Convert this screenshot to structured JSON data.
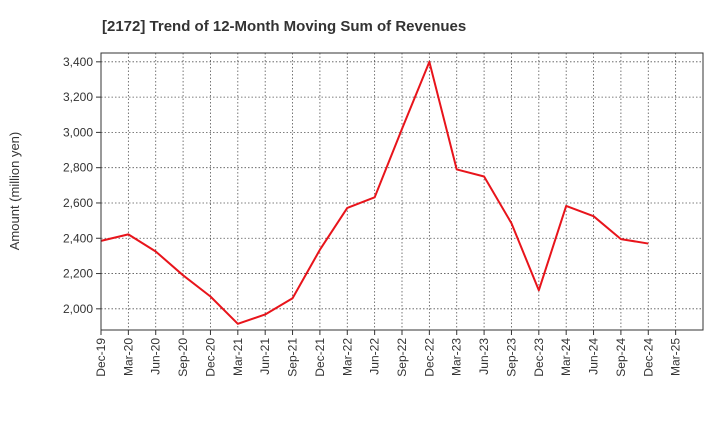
{
  "chart_data": {
    "type": "line",
    "title": "[2172]  Trend of 12-Month Moving Sum of Revenues",
    "xlabel": "",
    "ylabel": "Amount (million yen)",
    "ylim": [
      1880,
      3450
    ],
    "y_ticks": [
      2000,
      2200,
      2400,
      2600,
      2800,
      3000,
      3200,
      3400
    ],
    "y_tick_labels": [
      "2,000",
      "2,200",
      "2,400",
      "2,600",
      "2,800",
      "3,000",
      "3,200",
      "3,400"
    ],
    "x_tick_labels": [
      "Dec-19",
      "Mar-20",
      "Jun-20",
      "Sep-20",
      "Dec-20",
      "Mar-21",
      "Jun-21",
      "Sep-21",
      "Dec-21",
      "Mar-22",
      "Jun-22",
      "Sep-22",
      "Dec-22",
      "Mar-23",
      "Jun-23",
      "Sep-23",
      "Dec-23",
      "Mar-24",
      "Jun-24",
      "Sep-24",
      "Dec-24",
      "Mar-25"
    ],
    "grid": true,
    "line_color": "#e8141b",
    "series": [
      {
        "values": [
          2385,
          2422,
          2325,
          2190,
          2070,
          1915,
          1968,
          2060,
          2335,
          2572,
          2632,
          3020,
          3400,
          2790,
          2750,
          2485,
          2105,
          2583,
          2525,
          2395,
          2370
        ]
      }
    ]
  }
}
